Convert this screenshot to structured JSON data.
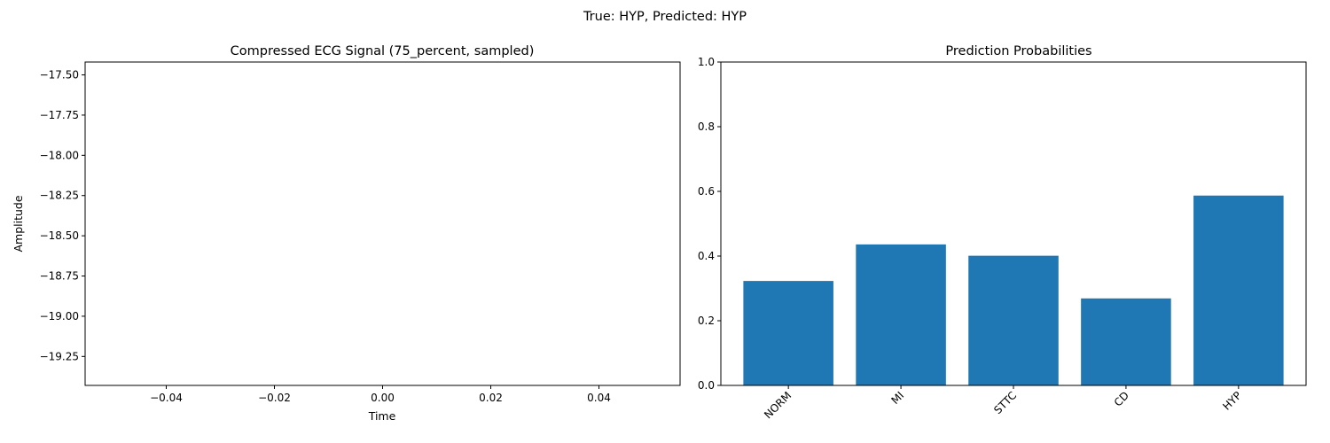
{
  "figure": {
    "suptitle": "True: HYP, Predicted: HYP"
  },
  "chart_data": [
    {
      "type": "line",
      "title": "Compressed ECG Signal (75_percent, sampled)",
      "xlabel": "Time",
      "ylabel": "Amplitude",
      "series": [
        {
          "values": []
        }
      ],
      "xlim": [
        -0.055,
        0.055
      ],
      "ylim": [
        -19.43,
        -17.42
      ],
      "xticks": [
        -0.04,
        -0.02,
        0.0,
        0.02,
        0.04
      ],
      "xtick_labels": [
        "−0.04",
        "−0.02",
        "0.00",
        "0.02",
        "0.04"
      ],
      "yticks": [
        -17.5,
        -17.75,
        -18.0,
        -18.25,
        -18.5,
        -18.75,
        -19.0,
        -19.25
      ],
      "ytick_labels": [
        "−17.50",
        "−17.75",
        "−18.00",
        "−18.25",
        "−18.50",
        "−18.75",
        "−19.00",
        "−19.25"
      ],
      "grid": false
    },
    {
      "type": "bar",
      "title": "Prediction Probabilities",
      "xlabel": "",
      "ylabel": "",
      "categories": [
        "NORM",
        "MI",
        "STTC",
        "CD",
        "HYP"
      ],
      "values": [
        0.323,
        0.436,
        0.401,
        0.269,
        0.587
      ],
      "ylim": [
        0.0,
        1.0
      ],
      "yticks": [
        0.0,
        0.2,
        0.4,
        0.6,
        0.8,
        1.0
      ],
      "ytick_labels": [
        "0.0",
        "0.2",
        "0.4",
        "0.6",
        "0.8",
        "1.0"
      ],
      "bar_color": "#1f77b4",
      "xtick_rotation": 45,
      "grid": false
    }
  ]
}
